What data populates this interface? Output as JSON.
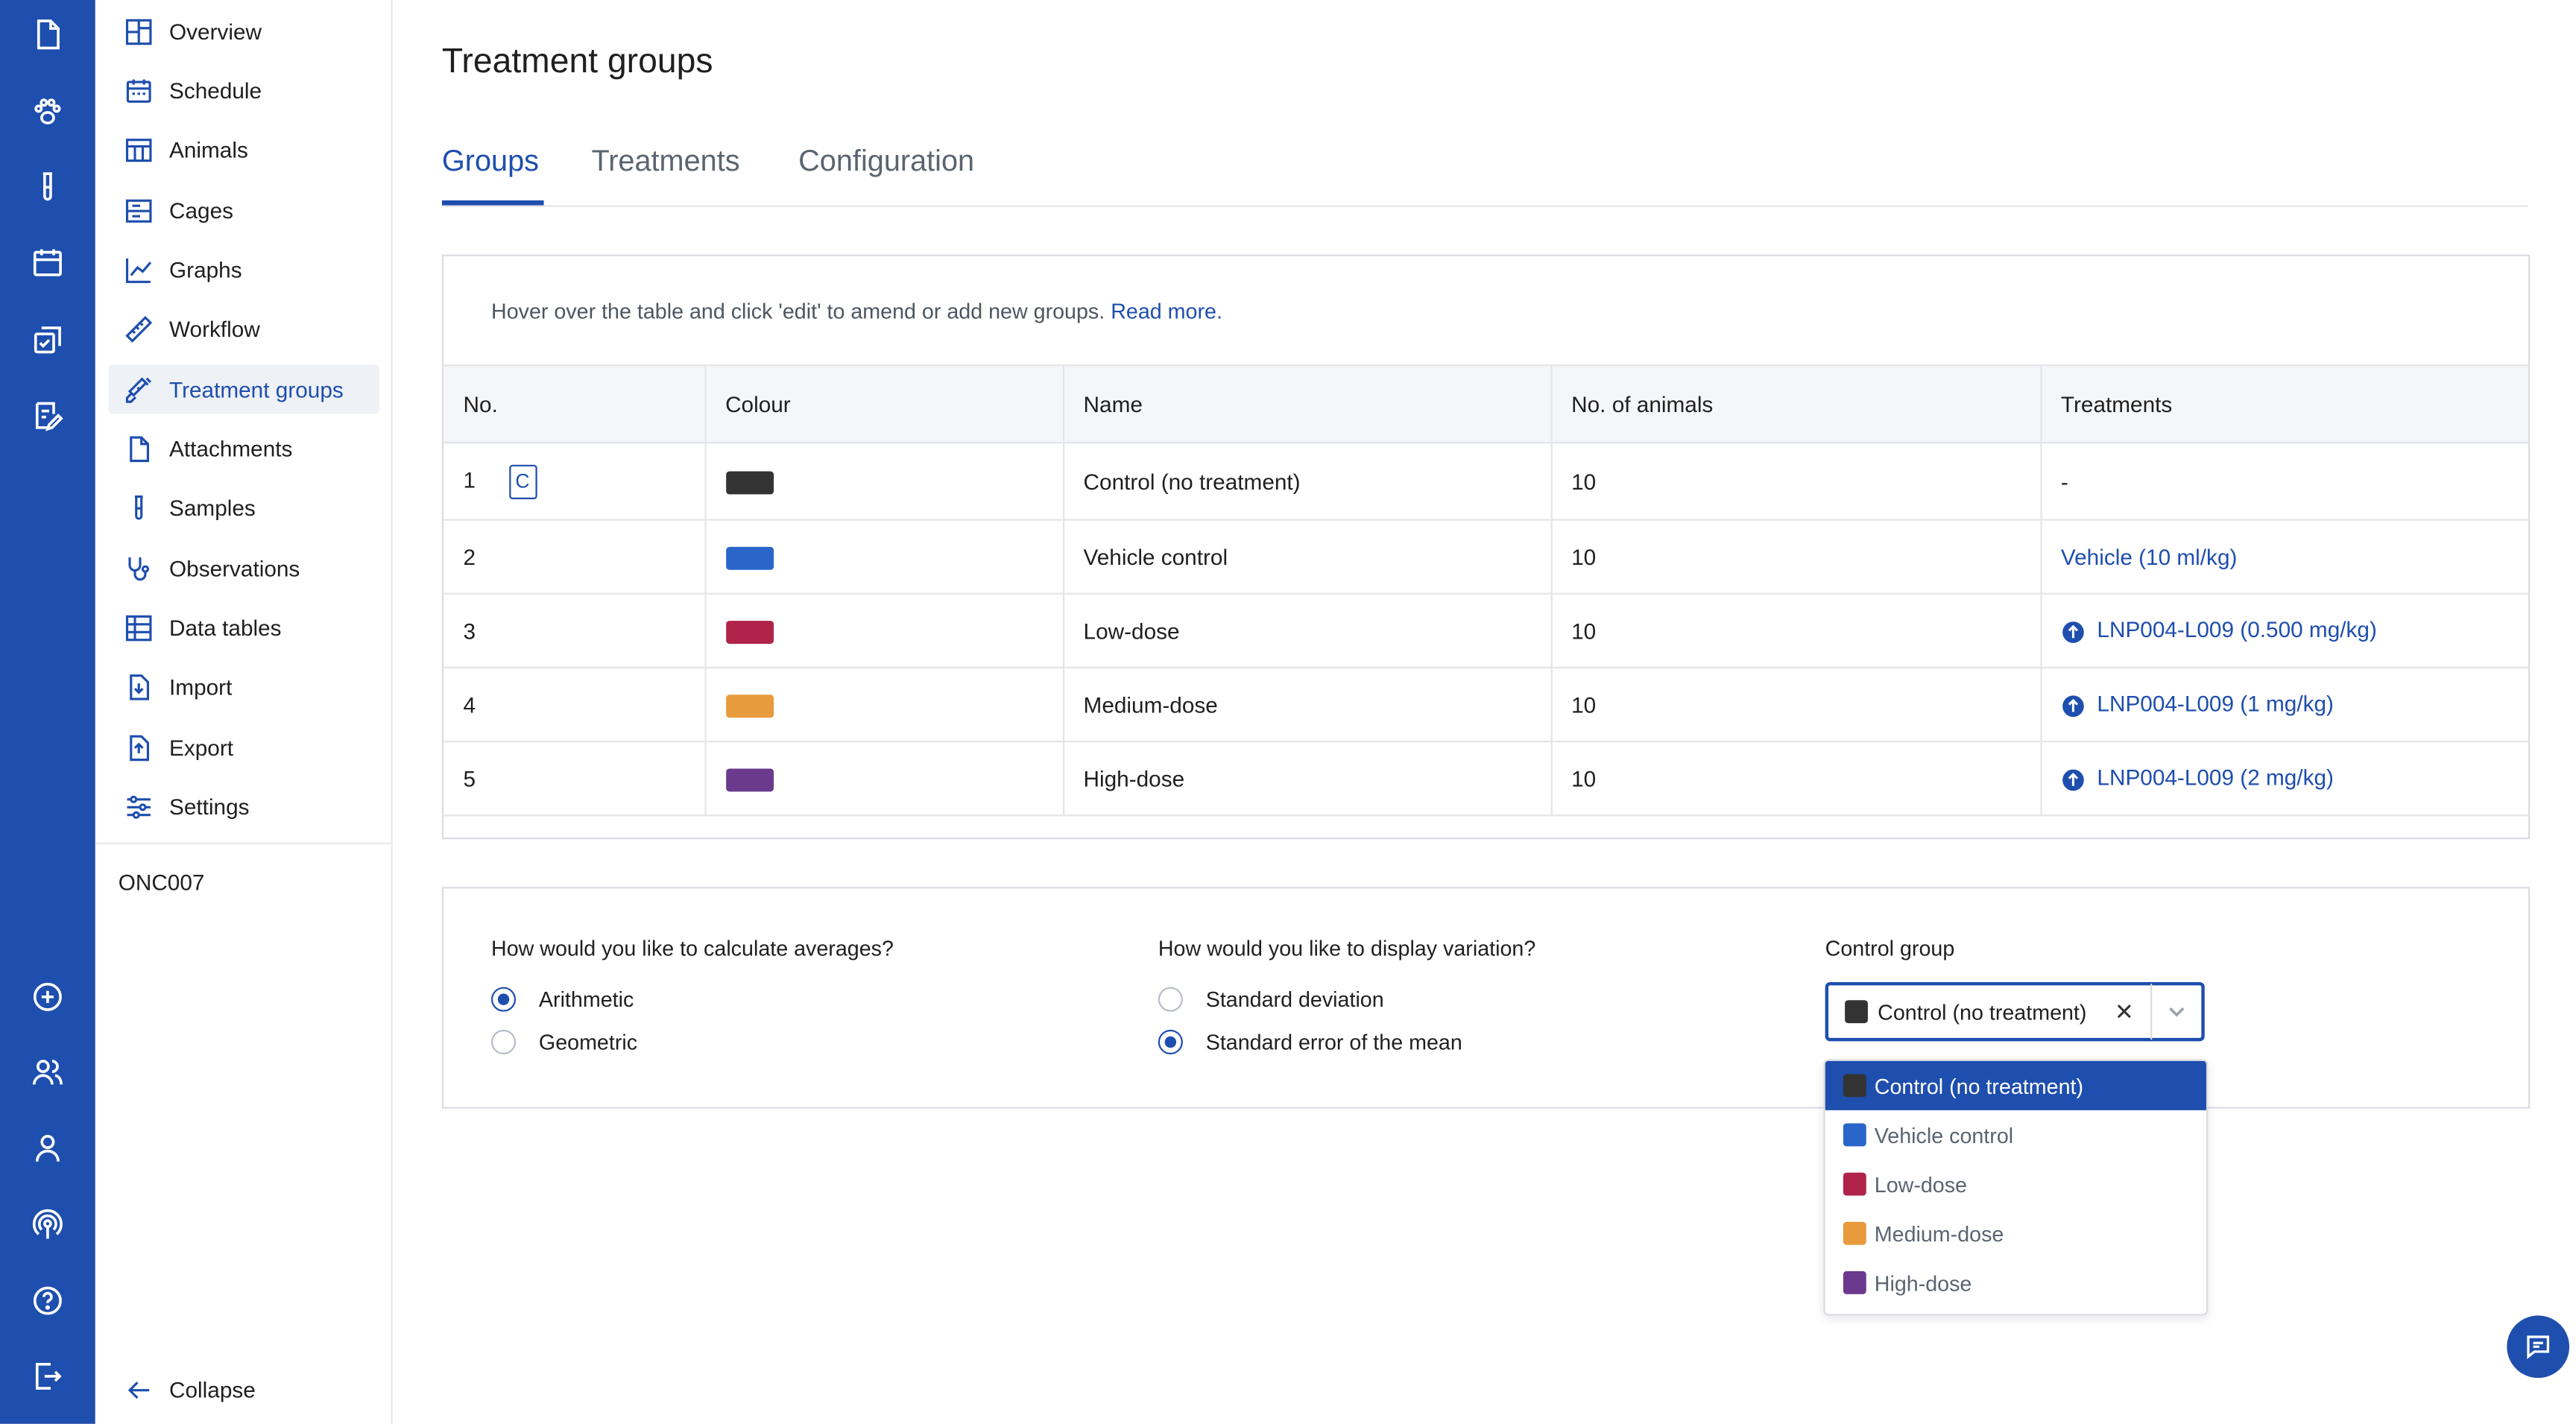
{
  "nav": {
    "items": [
      {
        "label": "Overview",
        "icon": "layout-icon"
      },
      {
        "label": "Schedule",
        "icon": "calendar-icon"
      },
      {
        "label": "Animals",
        "icon": "table-icon"
      },
      {
        "label": "Cages",
        "icon": "cage-icon"
      },
      {
        "label": "Graphs",
        "icon": "graph-icon"
      },
      {
        "label": "Workflow",
        "icon": "ruler-icon"
      },
      {
        "label": "Treatment groups",
        "icon": "syringe-icon"
      },
      {
        "label": "Attachments",
        "icon": "file-icon"
      },
      {
        "label": "Samples",
        "icon": "test-tube-icon"
      },
      {
        "label": "Observations",
        "icon": "stethoscope-icon"
      },
      {
        "label": "Data tables",
        "icon": "grid-icon"
      },
      {
        "label": "Import",
        "icon": "import-icon"
      },
      {
        "label": "Export",
        "icon": "export-icon"
      },
      {
        "label": "Settings",
        "icon": "sliders-icon"
      }
    ],
    "active": "Treatment groups",
    "study_code": "ONC007",
    "collapse_label": "Collapse"
  },
  "page": {
    "title": "Treatment groups",
    "tabs": [
      "Groups",
      "Treatments",
      "Configuration"
    ],
    "active_tab": "Groups"
  },
  "groups_table": {
    "hint": "Hover over the table and click 'edit' to amend or add new groups.",
    "read_more": "Read more.",
    "columns": [
      "No.",
      "Colour",
      "Name",
      "No. of animals",
      "Treatments"
    ],
    "control_badge": "C",
    "rows": [
      {
        "no": "1",
        "color": "#333333",
        "name": "Control (no treatment)",
        "animals": "10",
        "treatment": "-"
      },
      {
        "no": "2",
        "color": "#2a66c9",
        "name": "Vehicle control",
        "animals": "10",
        "treatment": "Vehicle (10 ml/kg)"
      },
      {
        "no": "3",
        "color": "#b0244a",
        "name": "Low-dose",
        "animals": "10",
        "treatment": "LNP004-L009 (0.500 mg/kg)"
      },
      {
        "no": "4",
        "color": "#e89b3c",
        "name": "Medium-dose",
        "animals": "10",
        "treatment": "LNP004-L009 (1 mg/kg)"
      },
      {
        "no": "5",
        "color": "#6b3a8c",
        "name": "High-dose",
        "animals": "10",
        "treatment": "LNP004-L009 (2 mg/kg)"
      }
    ]
  },
  "settings": {
    "averages": {
      "question": "How would you like to calculate averages?",
      "options": [
        "Arithmetic",
        "Geometric"
      ],
      "selected": "Arithmetic"
    },
    "variation": {
      "question": "How would you like to display variation?",
      "options": [
        "Standard deviation",
        "Standard error of the mean"
      ],
      "selected": "Standard error of the mean"
    },
    "control_group": {
      "label": "Control group",
      "value": "Control (no treatment)",
      "options": [
        {
          "label": "Control (no treatment)",
          "color": "#333333"
        },
        {
          "label": "Vehicle control",
          "color": "#2a66c9"
        },
        {
          "label": "Low-dose",
          "color": "#b0244a"
        },
        {
          "label": "Medium-dose",
          "color": "#e89b3c"
        },
        {
          "label": "High-dose",
          "color": "#6b3a8c"
        }
      ]
    }
  },
  "colors": {
    "brand": "#1e4eae"
  }
}
